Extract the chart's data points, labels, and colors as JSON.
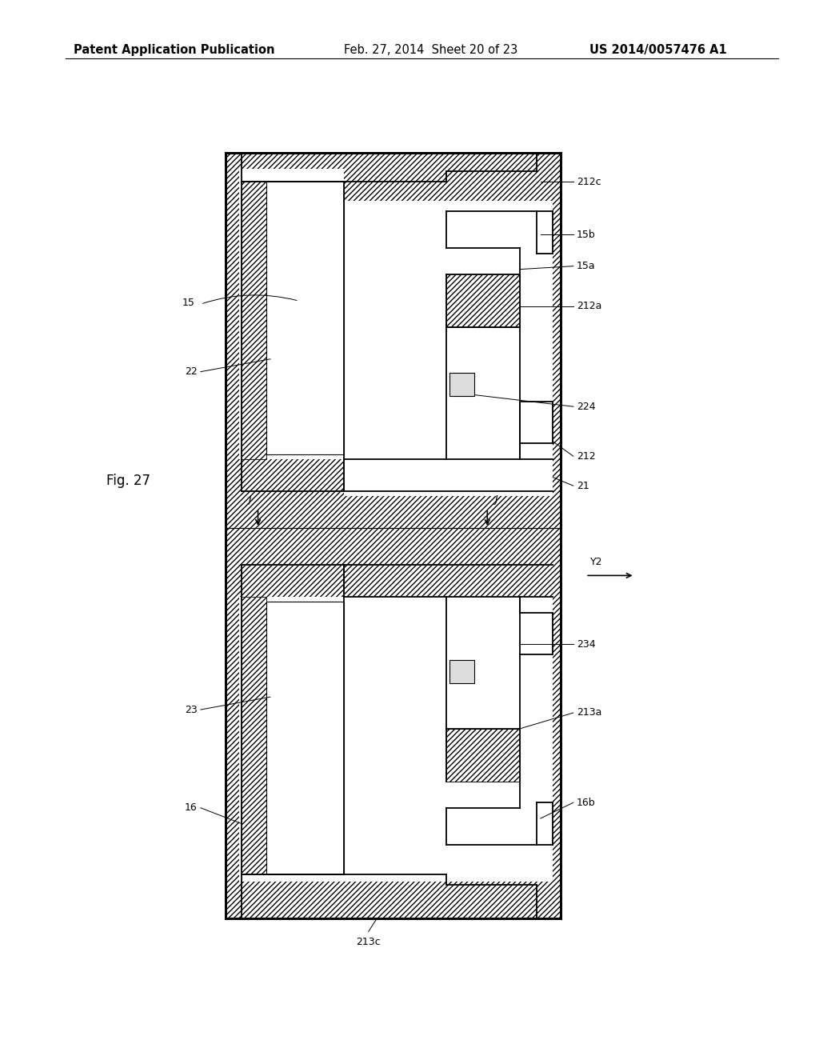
{
  "bg_color": "#ffffff",
  "header_left": "Patent Application Publication",
  "header_mid": "Feb. 27, 2014  Sheet 20 of 23",
  "header_right": "US 2014/0057476 A1",
  "fig_label": "Fig. 27",
  "header_fontsize": 10.5,
  "label_fontsize": 9
}
